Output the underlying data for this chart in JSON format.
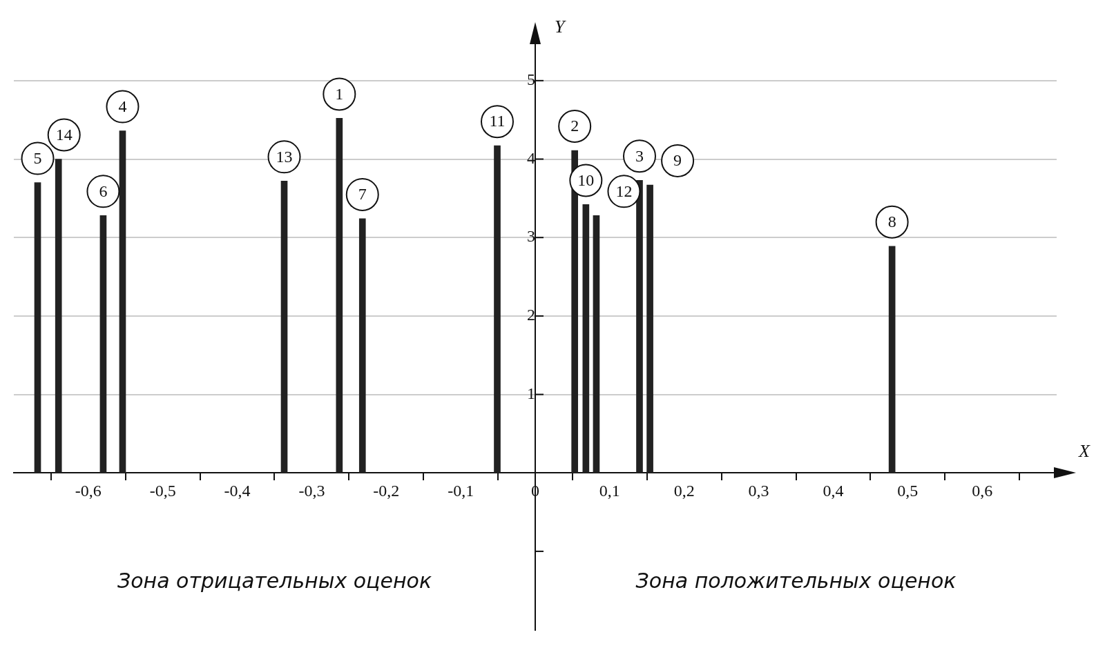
{
  "chart_data": {
    "type": "bar",
    "xlabel": "X",
    "ylabel": "Y",
    "color": "#222222",
    "x": [
      -0.668,
      -0.64,
      -0.58,
      -0.554,
      -0.337,
      -0.263,
      -0.232,
      -0.051,
      0.053,
      0.068,
      0.082,
      0.14,
      0.154,
      0.479
    ],
    "values": [
      3.7,
      4.0,
      3.28,
      4.36,
      3.72,
      4.52,
      3.24,
      4.17,
      4.11,
      3.42,
      3.28,
      3.73,
      3.67,
      2.89
    ],
    "xlim": [
      -0.7,
      0.7
    ],
    "xticks": [
      {
        "value": -0.6,
        "label": "-0,6"
      },
      {
        "value": -0.5,
        "label": "-0,5"
      },
      {
        "value": -0.4,
        "label": "-0,4"
      },
      {
        "value": -0.3,
        "label": "-0,3"
      },
      {
        "value": -0.2,
        "label": "-0,2"
      },
      {
        "value": -0.1,
        "label": "-0,1"
      },
      0,
      {
        "value": 0.1,
        "label": "0,1"
      },
      {
        "value": 0.2,
        "label": "0,2"
      },
      {
        "value": 0.3,
        "label": "0,3"
      },
      {
        "value": 0.4,
        "label": "0,4"
      },
      {
        "value": 0.5,
        "label": "0,5"
      },
      {
        "value": 0.6,
        "label": "0,6"
      }
    ],
    "ylim": [
      -2,
      5.5
    ],
    "yticks": [
      {
        "value": -1,
        "label": null
      },
      1,
      2,
      3,
      4,
      5
    ],
    "grid": "y",
    "annotations": [
      {
        "text": "5",
        "x": -0.668,
        "y": 3.7
      },
      {
        "text": "14",
        "x": -0.64,
        "y": 4.0
      },
      {
        "text": "6",
        "x": -0.58,
        "y": 3.28
      },
      {
        "text": "4",
        "x": -0.554,
        "y": 4.36
      },
      {
        "text": "13",
        "x": -0.337,
        "y": 3.72
      },
      {
        "text": "1",
        "x": -0.263,
        "y": 4.52
      },
      {
        "text": "7",
        "x": -0.232,
        "y": 3.24
      },
      {
        "text": "11",
        "x": -0.051,
        "y": 4.17
      },
      {
        "text": "2",
        "x": 0.053,
        "y": 4.11
      },
      {
        "text": "10",
        "x": 0.068,
        "y": 3.42
      },
      {
        "text": "12",
        "x": 0.082,
        "y": 3.28
      },
      {
        "text": "3",
        "x": 0.14,
        "y": 3.73
      },
      {
        "text": "9",
        "x": 0.154,
        "y": 3.67
      },
      {
        "text": "8",
        "x": 0.479,
        "y": 2.89
      },
      "Зона отрицательных оценок",
      "Зона положительных оценок"
    ]
  }
}
